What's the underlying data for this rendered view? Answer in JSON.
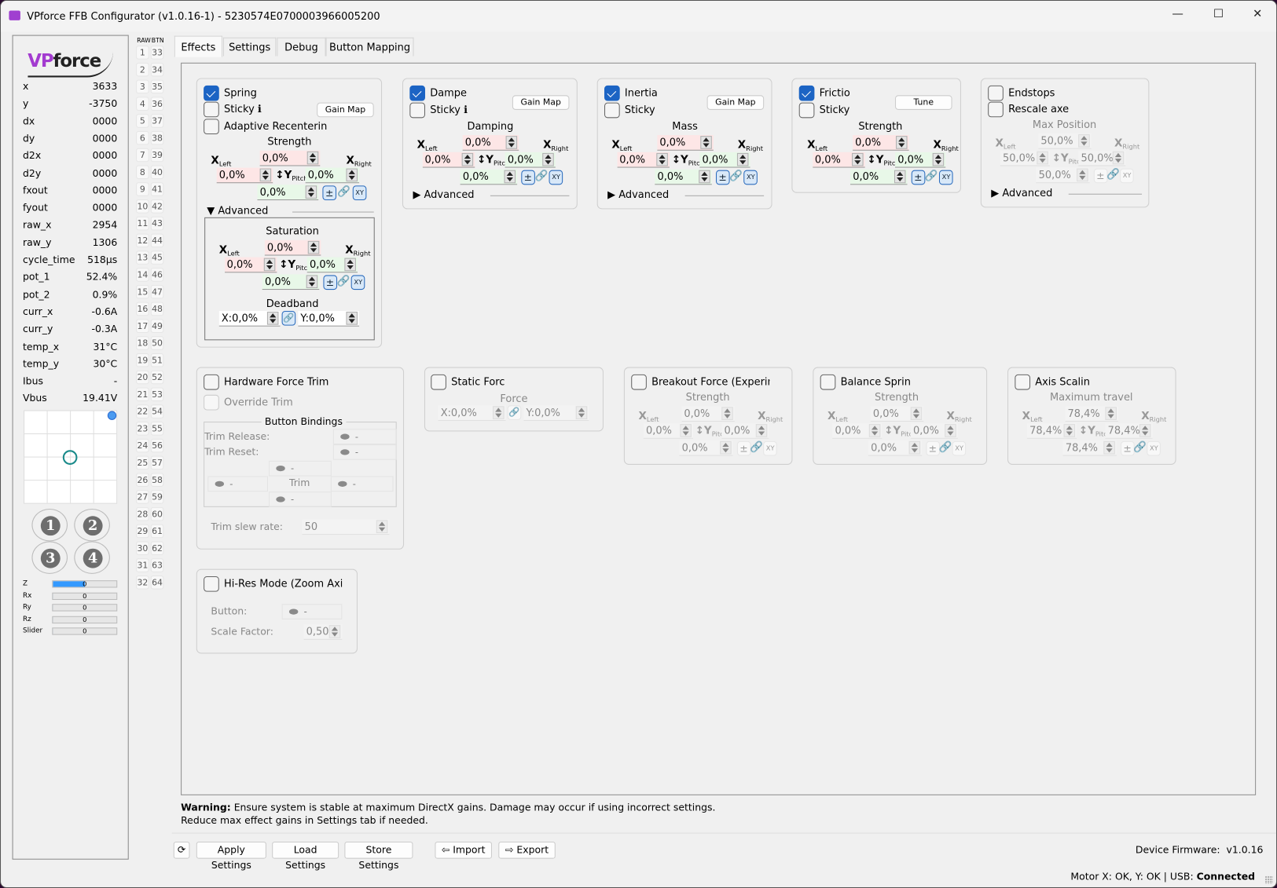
{
  "window": {
    "title": "VPforce FFB Configurator (v1.0.16-1) - 5230574E0700003966005200",
    "minimize": "—",
    "maximize": "☐",
    "close": "✕"
  },
  "sidebar": {
    "logo": "VPforce",
    "stats": [
      {
        "k": "x",
        "v": "3633"
      },
      {
        "k": "y",
        "v": "-3750"
      },
      {
        "k": "dx",
        "v": "0000"
      },
      {
        "k": "dy",
        "v": "0000"
      },
      {
        "k": "d2x",
        "v": "0000"
      },
      {
        "k": "d2y",
        "v": "0000"
      },
      {
        "k": "fxout",
        "v": "0000"
      },
      {
        "k": "fyout",
        "v": "0000"
      },
      {
        "k": "raw_x",
        "v": "2954"
      },
      {
        "k": "raw_y",
        "v": "1306"
      },
      {
        "k": "cycle_time",
        "v": "518µs"
      },
      {
        "k": "pot_1",
        "v": "52.4%"
      },
      {
        "k": "pot_2",
        "v": "0.9%"
      },
      {
        "k": "curr_x",
        "v": "-0.6A"
      },
      {
        "k": "curr_y",
        "v": "-0.3A"
      },
      {
        "k": "temp_x",
        "v": "31°C"
      },
      {
        "k": "temp_y",
        "v": "30°C"
      },
      {
        "k": "Ibus",
        "v": "-"
      },
      {
        "k": "Vbus",
        "v": "19.41V"
      }
    ],
    "hat_buttons": [
      "1",
      "2",
      "3",
      "4"
    ],
    "axes": [
      {
        "name": "Z",
        "value": "0",
        "fill": 0.5
      },
      {
        "name": "Rx",
        "value": "0",
        "fill": 0
      },
      {
        "name": "Ry",
        "value": "0",
        "fill": 0
      },
      {
        "name": "Rz",
        "value": "0",
        "fill": 0
      },
      {
        "name": "Slider",
        "value": "0",
        "fill": 0
      }
    ],
    "accent": "#3399ff"
  },
  "buttons_col": {
    "header_raw": "RAW",
    "header_btn": "BTN"
  },
  "tabs": [
    {
      "label": "Effects",
      "active": true
    },
    {
      "label": "Settings"
    },
    {
      "label": "Debug"
    },
    {
      "label": "Button Mapping"
    }
  ],
  "axis_labels": {
    "x": "X",
    "left": "Left",
    "right": "Right",
    "y": "↕Y",
    "pitch": "Pitch",
    "pm": "±",
    "xy": "XY",
    "link": "🔗"
  },
  "effects": {
    "spring": {
      "label": "Spring",
      "checked": true,
      "sticky": "Sticky ℹ",
      "adaptive": "Adaptive Recenterin",
      "gain_map": "Gain Map",
      "strength": {
        "title": "Strength",
        "top": "0,0%",
        "left": "0,0%",
        "right": "0,0%",
        "bottom": "0,0%"
      },
      "advanced": "Advanced",
      "saturation": {
        "title": "Saturation",
        "top": "0,0%",
        "left": "0,0%",
        "right": "0,0%",
        "bottom": "0,0%"
      },
      "deadband": {
        "title": "Deadband",
        "x": "X:0,0%",
        "y": "Y:0,0%"
      }
    },
    "damper": {
      "label": "Dampe",
      "checked": true,
      "sticky": "Sticky ℹ",
      "gain_map": "Gain Map",
      "advanced": "Advanced",
      "strength": {
        "title": "Damping",
        "top": "0,0%",
        "left": "0,0%",
        "right": "0,0%",
        "bottom": "0,0%"
      }
    },
    "inertia": {
      "label": "Inertia",
      "checked": true,
      "sticky": "Sticky",
      "gain_map": "Gain Map",
      "advanced": "Advanced",
      "strength": {
        "title": "Mass",
        "top": "0,0%",
        "left": "0,0%",
        "right": "0,0%",
        "bottom": "0,0%"
      }
    },
    "friction": {
      "label": "Frictio",
      "checked": true,
      "sticky": "Sticky",
      "tune": "Tune",
      "strength": {
        "title": "Strength",
        "top": "0,0%",
        "left": "0,0%",
        "right": "0,0%",
        "bottom": "0,0%"
      }
    },
    "endstops": {
      "label": "Endstops",
      "rescale": "Rescale axe",
      "advanced": "Advanced",
      "strength": {
        "title": "Max Position",
        "top": "50,0%",
        "left": "50,0%",
        "right": "50,0%",
        "bottom": "50,0%"
      }
    },
    "hw_trim": {
      "label": "Hardware Force Trim",
      "override": "Override Trim",
      "bindings_title": "Button Bindings",
      "trim_release": "Trim Release:",
      "trim_reset": "Trim Reset:",
      "trim": "Trim",
      "unbound": "-",
      "slew_label": "Trim slew rate:",
      "slew": "50"
    },
    "static_force": {
      "label": "Static Forc",
      "title": "Force",
      "x": "X:0,0%",
      "y": "Y:0,0%"
    },
    "breakout": {
      "label": "Breakout Force (Experimental",
      "strength": {
        "title": "Strength",
        "top": "0,0%",
        "left": "0,0%",
        "right": "0,0%",
        "bottom": "0,0%"
      }
    },
    "balance": {
      "label": "Balance Sprin",
      "strength": {
        "title": "Strength",
        "top": "0,0%",
        "left": "0,0%",
        "right": "0,0%",
        "bottom": "0,0%"
      }
    },
    "axis_scaling": {
      "label": "Axis Scalin",
      "strength": {
        "title": "Maximum travel",
        "top": "78,4%",
        "left": "78,4%",
        "right": "78,4%",
        "bottom": "78,4%"
      }
    },
    "hires": {
      "label": "Hi-Res Mode (Zoom Axis)",
      "button_label": "Button:",
      "button_value": "-",
      "scale_label": "Scale Factor:",
      "scale": "0,50"
    }
  },
  "warning": {
    "bold": "Warning:",
    "text": " Ensure system is stable at maximum DirectX gains. Damage may occur if using incorrect settings.",
    "line2": "Reduce max effect gains in Settings tab if needed."
  },
  "footer": {
    "refresh": "⟳",
    "apply": "Apply Settings",
    "load": "Load Settings",
    "store": "Store Settings",
    "import": "Import",
    "export": "Export",
    "firmware_label": "Device Firmware:",
    "firmware": "v1.0.16"
  },
  "status": {
    "text": "Motor X: OK, Y: OK | USB: ",
    "usb": "Connected"
  }
}
